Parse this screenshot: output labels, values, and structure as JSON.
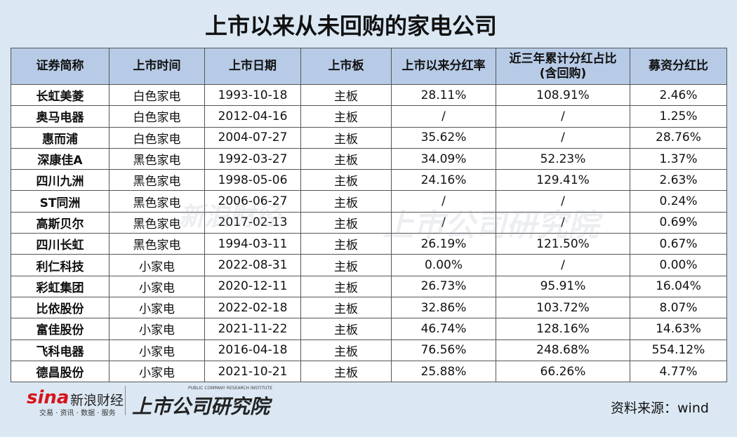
{
  "title": "上市以来从未回购的家电公司",
  "table": {
    "headers": [
      "证券简称",
      "上市时间",
      "上市日期",
      "上市板",
      "上市以来分红率",
      "近三年累计分红占比\n(含回购)",
      "募资分红比"
    ],
    "rows": [
      [
        "长虹美菱",
        "白色家电",
        "1993-10-18",
        "主板",
        "28.11%",
        "108.91%",
        "2.46%"
      ],
      [
        "奥马电器",
        "白色家电",
        "2012-04-16",
        "主板",
        "/",
        "/",
        "1.25%"
      ],
      [
        "惠而浦",
        "白色家电",
        "2004-07-27",
        "主板",
        "35.62%",
        "/",
        "28.76%"
      ],
      [
        "深康佳A",
        "黑色家电",
        "1992-03-27",
        "主板",
        "34.09%",
        "52.23%",
        "1.37%"
      ],
      [
        "四川九洲",
        "黑色家电",
        "1998-05-06",
        "主板",
        "24.16%",
        "129.41%",
        "2.63%"
      ],
      [
        "ST同洲",
        "黑色家电",
        "2006-06-27",
        "主板",
        "/",
        "/",
        "0.24%"
      ],
      [
        "高斯贝尔",
        "黑色家电",
        "2017-02-13",
        "主板",
        "/",
        "/",
        "0.69%"
      ],
      [
        "四川长虹",
        "黑色家电",
        "1994-03-11",
        "主板",
        "26.19%",
        "121.50%",
        "0.67%"
      ],
      [
        "利仁科技",
        "小家电",
        "2022-08-31",
        "主板",
        "0.00%",
        "/",
        "0.00%"
      ],
      [
        "彩虹集团",
        "小家电",
        "2020-12-11",
        "主板",
        "26.73%",
        "95.91%",
        "16.04%"
      ],
      [
        "比依股份",
        "小家电",
        "2022-02-18",
        "主板",
        "32.86%",
        "103.72%",
        "8.07%"
      ],
      [
        "富佳股份",
        "小家电",
        "2021-11-22",
        "主板",
        "46.74%",
        "128.16%",
        "14.63%"
      ],
      [
        "飞科电器",
        "小家电",
        "2016-04-18",
        "主板",
        "76.56%",
        "248.68%",
        "554.12%"
      ],
      [
        "德昌股份",
        "小家电",
        "2021-10-21",
        "主板",
        "25.88%",
        "66.26%",
        "4.77%"
      ]
    ]
  },
  "footer": {
    "logo": "sina",
    "brand": "新浪财经",
    "tagline": "交易 · 资讯 · 数据 · 服务",
    "institute": "上市公司研究院",
    "institute_en": "PUBLIC COMPANY RESEARCH INSTITUTE",
    "source": "资料来源：wind"
  }
}
